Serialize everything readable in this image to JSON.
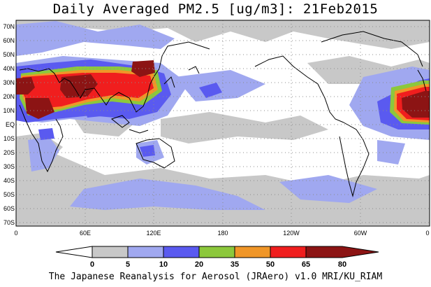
{
  "title": "Daily Averaged PM2.5 [ug/m3]: 21Feb2015",
  "footer": "The Japanese Reanalysis for Aerosol (JRAero) v1.0 MRI/KU_RIAM",
  "map": {
    "lat_labels": [
      "70N",
      "60N",
      "50N",
      "40N",
      "30N",
      "20N",
      "10N",
      "EQ",
      "10S",
      "20S",
      "30S",
      "40S",
      "50S",
      "60S",
      "70S"
    ],
    "lon_labels": [
      "0",
      "60E",
      "120E",
      "180",
      "120W",
      "60W",
      "0"
    ],
    "grid": "dotted"
  },
  "colorbar": {
    "levels": [
      "0",
      "5",
      "10",
      "20",
      "35",
      "50",
      "65",
      "80"
    ],
    "colors": [
      "#ffffff",
      "#c8c8c8",
      "#a0a8f0",
      "#5a5af0",
      "#8cc83c",
      "#f09628",
      "#f01e1e",
      "#8c1414"
    ]
  }
}
